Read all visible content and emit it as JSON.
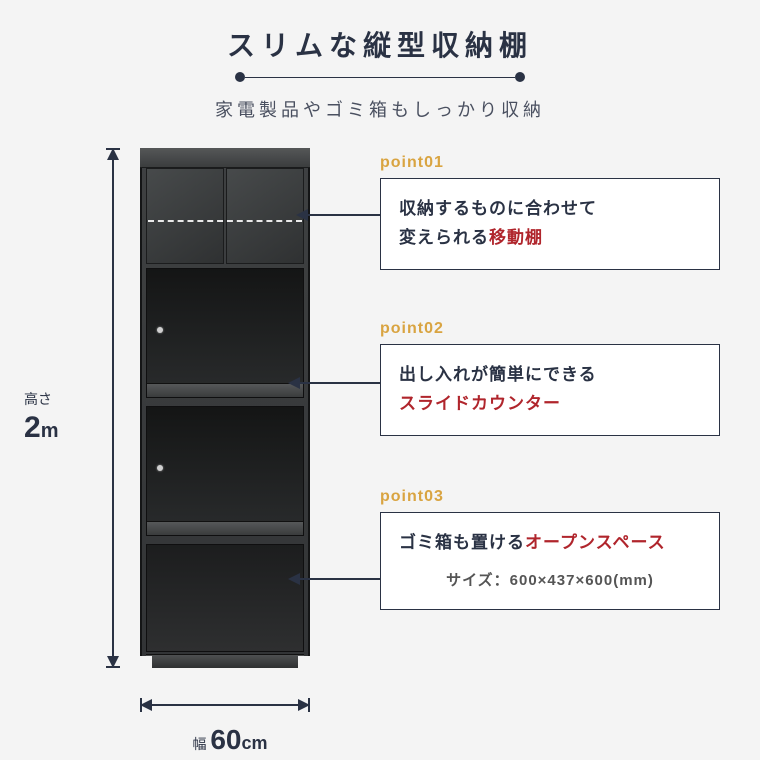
{
  "header": {
    "title": "スリムな縦型収納棚",
    "subtitle": "家電製品やゴミ箱もしっかり収納"
  },
  "dimensions": {
    "height_label": "高さ",
    "height_value": "2",
    "height_unit": "m",
    "width_label": "幅",
    "width_value": "60",
    "width_unit": "cm"
  },
  "callouts": [
    {
      "point": "point01",
      "line1": "収納するものに合わせて",
      "line2_pre": "変えられる",
      "line2_hl": "移動棚"
    },
    {
      "point": "point02",
      "line1": "出し入れが簡単にできる",
      "line2_hl": "スライドカウンター"
    },
    {
      "point": "point03",
      "line1_pre": "ゴミ箱も置ける",
      "line1_hl": "オープンスペース",
      "size": "サイズ：600×437×600(mm)"
    }
  ],
  "colors": {
    "text": "#2a3244",
    "accent": "#d9a441",
    "highlight": "#b0252c",
    "bg": "#f4f4f4",
    "box_bg": "#ffffff"
  }
}
